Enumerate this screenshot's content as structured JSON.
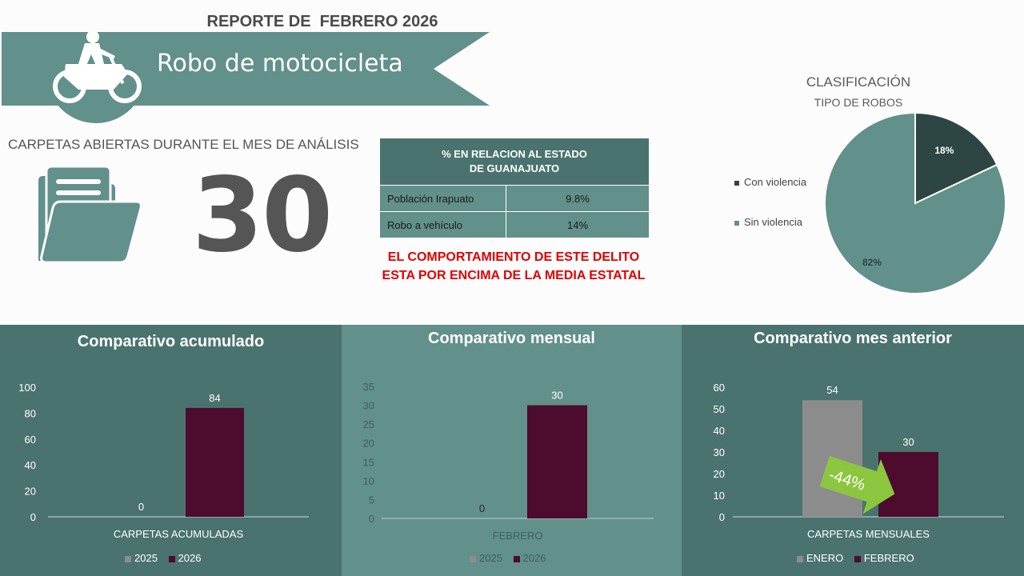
{
  "header": {
    "report_title": "REPORTE DE  FEBRERO 2026",
    "crime_title": "Robo de motocicleta",
    "motorcycle_icon": "motorcycle-rider-icon"
  },
  "summary": {
    "label": "CARPETAS ABIERTAS DURANTE EL MES DE ANÁLISIS",
    "count": "30",
    "folder_icon": "folder-icon"
  },
  "relation_table": {
    "header_line1": "% EN RELACION AL ESTADO",
    "header_line2": "DE GUANAJUATO",
    "rows": [
      {
        "label": "Población Irapuato",
        "value": "9.8%"
      },
      {
        "label": "Robo a vehículo",
        "value": "14%"
      }
    ]
  },
  "alert": {
    "line1": "EL COMPORTAMIENTO DE ESTE DELITO",
    "line2": "ESTA POR ENCIMA DE LA MEDIA ESTATAL"
  },
  "colors": {
    "teal": "#62908b",
    "dark_teal": "#4a736f",
    "darkest": "#2d4644",
    "maroon": "#4d0b2e",
    "gray": "#8c8c8c",
    "alert_red": "#e00000",
    "arrow_green": "#8cc63f"
  },
  "chart_data": [
    {
      "type": "pie",
      "title": "CLASIFICACIÓN",
      "subtitle": "TIPO DE ROBOS",
      "categories": [
        "Con violencia",
        "Sin violencia"
      ],
      "values": [
        18,
        82
      ],
      "value_labels": [
        "18%",
        "82%"
      ],
      "colors": [
        "#2d4644",
        "#62908b"
      ],
      "legend_position": "left"
    },
    {
      "type": "bar",
      "title": "Comparativo acumulado",
      "categories": [
        "CARPETAS ACUMULADAS"
      ],
      "series": [
        {
          "name": "2025",
          "values": [
            0
          ],
          "color": "#8c8c8c"
        },
        {
          "name": "2026",
          "values": [
            84
          ],
          "color": "#4d0b2e"
        }
      ],
      "value_labels": [
        "0",
        "84"
      ],
      "ylim": [
        0,
        100
      ],
      "yticks": [
        "0",
        "20",
        "40",
        "60",
        "80",
        "100"
      ],
      "legend_position": "bottom"
    },
    {
      "type": "bar",
      "title": "Comparativo mensual",
      "categories": [
        "FEBRERO"
      ],
      "series": [
        {
          "name": "2025",
          "values": [
            0
          ],
          "color": "#8c8c8c"
        },
        {
          "name": "2026",
          "values": [
            30
          ],
          "color": "#4d0b2e"
        }
      ],
      "value_labels": [
        "0",
        "30"
      ],
      "ylim": [
        0,
        35
      ],
      "yticks": [
        "0",
        "5",
        "10",
        "15",
        "20",
        "25",
        "30",
        "35"
      ],
      "legend_position": "bottom"
    },
    {
      "type": "bar",
      "title": "Comparativo mes anterior",
      "categories": [
        "CARPETAS MENSUALES"
      ],
      "series": [
        {
          "name": "ENERO",
          "values": [
            54
          ],
          "color": "#8c8c8c"
        },
        {
          "name": "FEBRERO",
          "values": [
            30
          ],
          "color": "#4d0b2e"
        }
      ],
      "value_labels": [
        "54",
        "30"
      ],
      "ylim": [
        0,
        60
      ],
      "yticks": [
        "0",
        "10",
        "20",
        "30",
        "40",
        "50",
        "60"
      ],
      "annotation": "-44%",
      "legend_position": "bottom"
    }
  ]
}
